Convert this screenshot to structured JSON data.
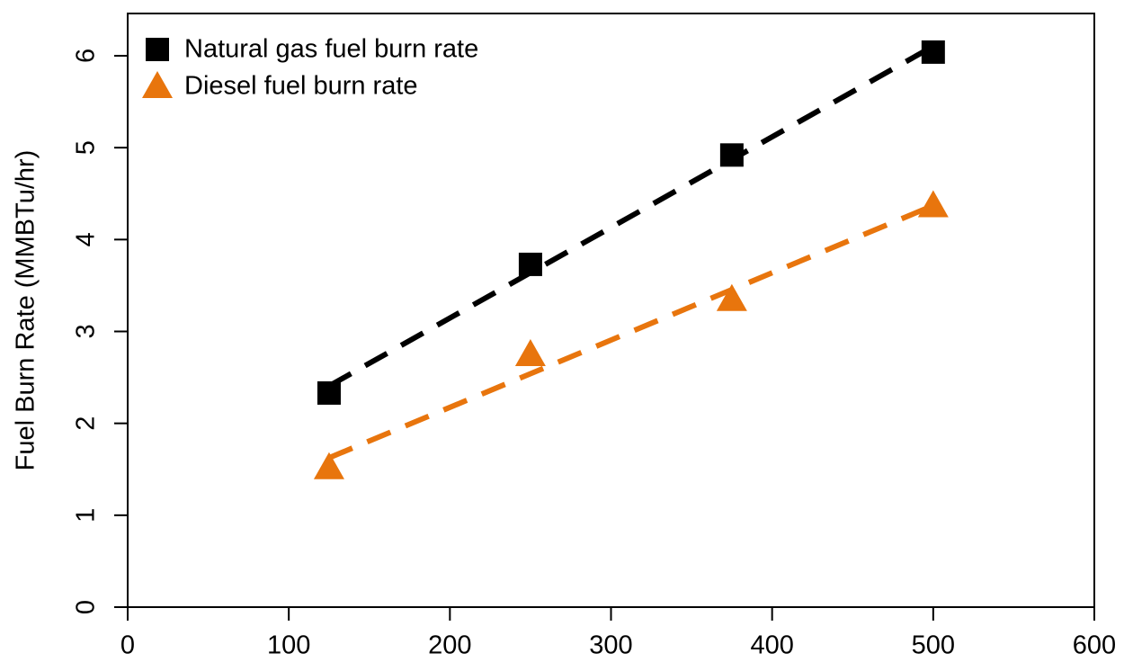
{
  "chart_data": {
    "type": "scatter",
    "y_label": "Fuel Burn Rate (MMBTu/hr)",
    "xlim": [
      0,
      600
    ],
    "xticks": [
      0,
      100,
      200,
      300,
      400,
      500,
      600
    ],
    "ylim": [
      0,
      6.46
    ],
    "yticks": [
      0,
      1,
      2,
      3,
      4,
      5,
      6
    ],
    "trendline": true,
    "legend": "top-left",
    "series": [
      {
        "name": "Natural gas fuel burn rate",
        "color": "#000000",
        "marker": "square",
        "x": [
          125,
          250,
          375,
          500
        ],
        "values": [
          2.33,
          3.73,
          4.92,
          6.04
        ]
      },
      {
        "name": "Diesel fuel burn rate",
        "color": "#e8750d",
        "marker": "triangle",
        "x": [
          125,
          250,
          375,
          500
        ],
        "values": [
          1.52,
          2.75,
          3.35,
          4.37
        ]
      }
    ]
  }
}
